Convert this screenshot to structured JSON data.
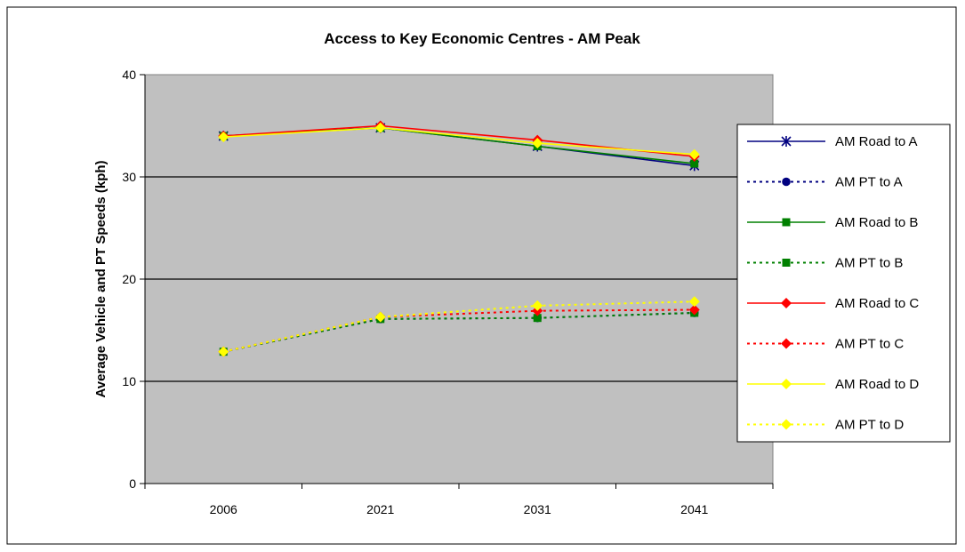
{
  "chart_data": {
    "type": "line",
    "title": "Access to Key Economic Centres - AM Peak",
    "xlabel": "",
    "ylabel": "Average Vehicle and PT Speeds (kph)",
    "categories": [
      "2006",
      "2021",
      "2031",
      "2041"
    ],
    "ylim": [
      0,
      40
    ],
    "yticks": [
      0,
      10,
      20,
      30,
      40
    ],
    "grid": true,
    "plot_background": "#C0C0C0",
    "legend_position": "right",
    "series": [
      {
        "name": "AM Road to A",
        "values": [
          34.0,
          34.8,
          33.0,
          31.1
        ],
        "color": "#000080",
        "dash": "solid",
        "marker": "star"
      },
      {
        "name": "AM PT to A",
        "values": [
          12.9,
          16.1,
          16.2,
          16.7
        ],
        "color": "#000080",
        "dash": "dotted",
        "marker": "circle"
      },
      {
        "name": "AM Road to B",
        "values": [
          34.0,
          34.8,
          33.0,
          31.3
        ],
        "color": "#008000",
        "dash": "solid",
        "marker": "square"
      },
      {
        "name": "AM PT to B",
        "values": [
          12.9,
          16.1,
          16.2,
          16.7
        ],
        "color": "#008000",
        "dash": "dotted",
        "marker": "square"
      },
      {
        "name": "AM Road to C",
        "values": [
          34.0,
          35.0,
          33.6,
          32.0
        ],
        "color": "#FF0000",
        "dash": "solid",
        "marker": "diamond"
      },
      {
        "name": "AM PT to C",
        "values": [
          12.9,
          16.3,
          16.9,
          17.0
        ],
        "color": "#FF0000",
        "dash": "dotted",
        "marker": "diamond"
      },
      {
        "name": "AM Road to D",
        "values": [
          33.9,
          34.8,
          33.3,
          32.2
        ],
        "color": "#FFFF00",
        "dash": "solid",
        "marker": "diamond"
      },
      {
        "name": "AM PT to D",
        "values": [
          12.9,
          16.3,
          17.4,
          17.8
        ],
        "color": "#FFFF00",
        "dash": "dotted",
        "marker": "diamond"
      }
    ]
  }
}
